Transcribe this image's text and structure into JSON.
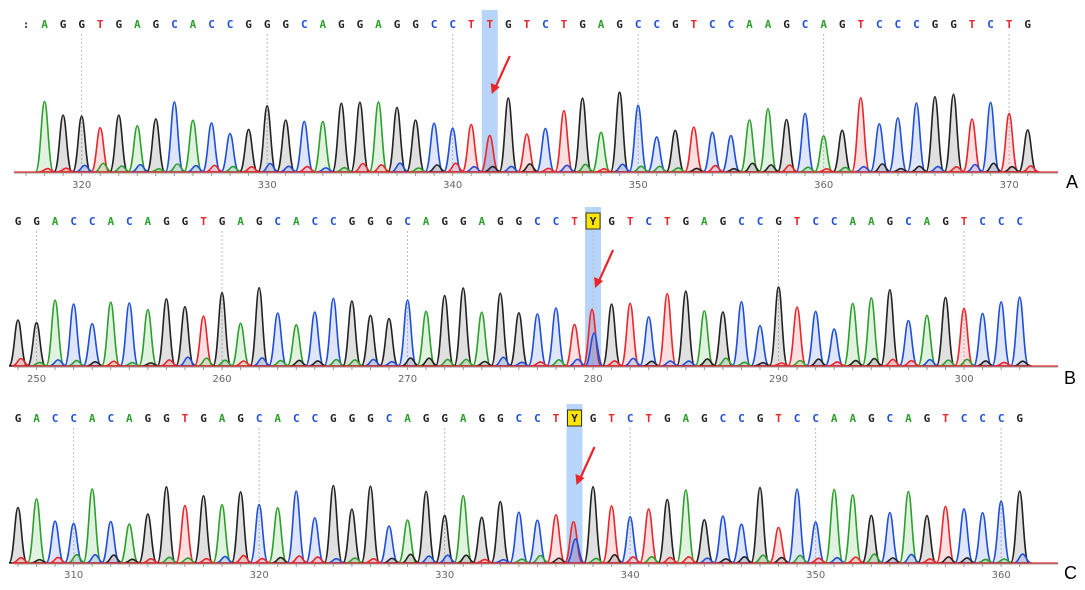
{
  "colors": {
    "A": "#2ca02c",
    "C": "#1f4fd8",
    "G": "#222222",
    "T": "#e8262b",
    "Y": "#222222",
    "highlight": "#9fc5f8",
    "ambiguity_box": "#ffe600",
    "arrow": "#e8262b"
  },
  "chart_data": [
    {
      "type": "chromatogram",
      "panel_label": "A",
      "sequence": ":AGGTGAGCACCGGGCAGGAGGCCTTGTCTGAGCCGTCCAAGCAGTCCCGGTCTG",
      "highlight_index": 25,
      "ambiguity_index": -1,
      "ticks": [
        "320",
        "330",
        "340",
        "350",
        "360",
        "370"
      ],
      "tick_base_index": [
        3,
        13,
        23,
        33,
        43,
        53
      ]
    },
    {
      "type": "chromatogram",
      "panel_label": "B",
      "sequence": "GGACCACAGGTGAGCACCGGGCAGGAGGCCTYGTCTGAGCCGTCCAAGCAGTCCC",
      "highlight_index": 31,
      "ambiguity_index": 31,
      "ticks": [
        "250",
        "260",
        "270",
        "280",
        "290",
        "300"
      ],
      "tick_base_index": [
        1,
        11,
        21,
        31,
        41,
        51
      ]
    },
    {
      "type": "chromatogram",
      "panel_label": "C",
      "sequence": "GACCACAGGTGAGCACCGGGCAGGAGGCCTYGTCTGAGCCGTCCAAGCAGTCCCG",
      "highlight_index": 30,
      "ambiguity_index": 30,
      "ticks": [
        "310",
        "320",
        "330",
        "340",
        "350",
        "360"
      ],
      "tick_base_index": [
        3,
        13,
        23,
        33,
        43,
        53
      ]
    }
  ]
}
